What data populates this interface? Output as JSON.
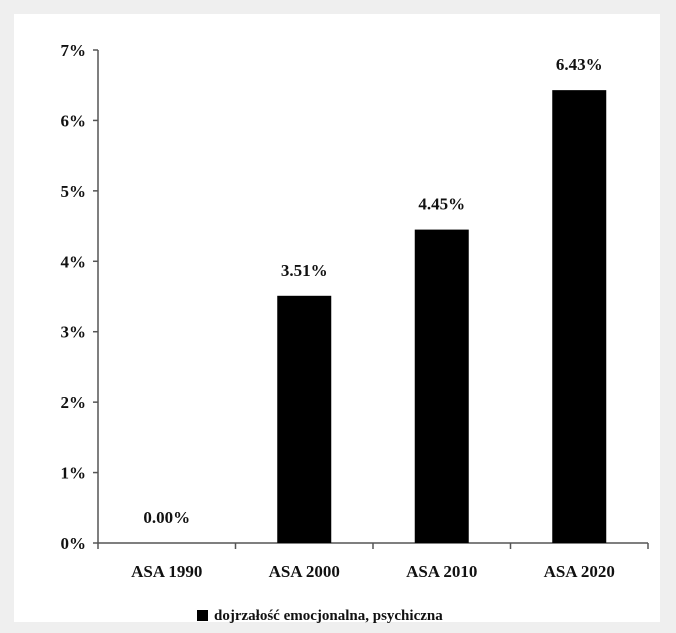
{
  "chart_data": {
    "type": "bar",
    "title": "",
    "xlabel": "",
    "ylabel": "",
    "categories": [
      "ASA 1990",
      "ASA 2000",
      "ASA 2010",
      "ASA 2020"
    ],
    "series": [
      {
        "name": "dojrzałość emocjonalna, psychiczna",
        "values": [
          0.0,
          3.51,
          4.45,
          6.43
        ],
        "color": "#000000"
      }
    ],
    "data_labels": [
      "0.00%",
      "3.51%",
      "4.45%",
      "6.43%"
    ],
    "y_ticks": [
      "0%",
      "1%",
      "2%",
      "3%",
      "4%",
      "5%",
      "6%",
      "7%"
    ],
    "ylim": [
      0,
      7
    ],
    "grid": false,
    "legend_position": "bottom"
  }
}
